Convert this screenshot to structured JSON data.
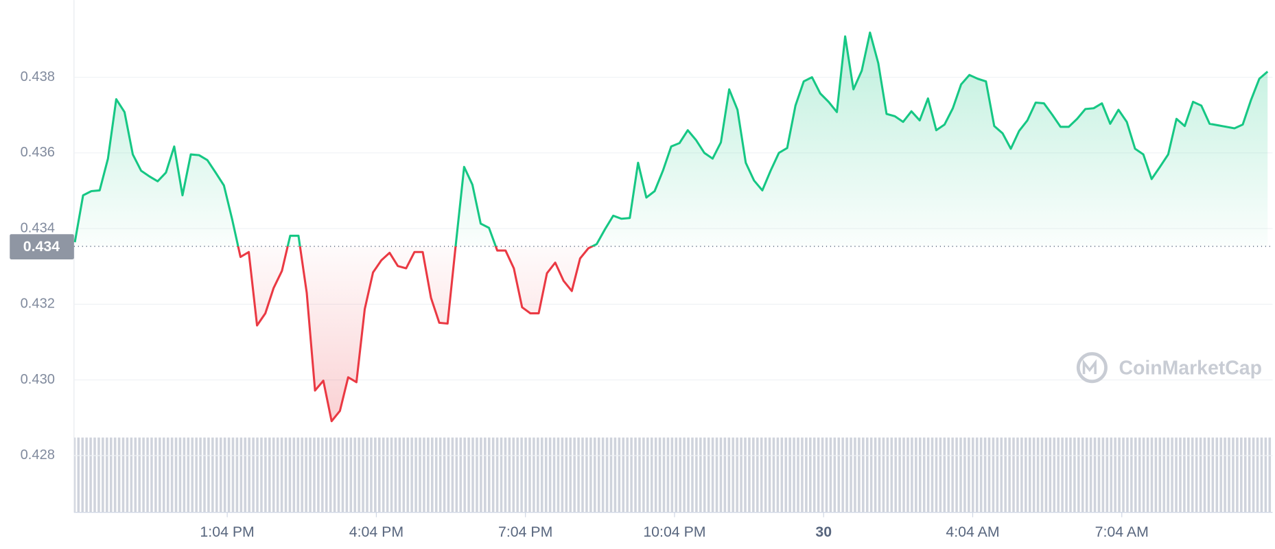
{
  "chart_data": {
    "type": "line",
    "x": [
      600,
      610,
      620,
      630,
      640,
      650,
      660,
      670,
      680,
      690,
      700,
      710,
      720,
      730,
      740,
      750,
      760,
      770,
      780,
      790,
      800,
      810,
      820,
      830,
      840,
      850,
      860,
      870,
      880,
      890,
      900,
      910,
      920,
      930,
      940,
      950,
      960,
      970,
      980,
      990,
      1000,
      1010,
      1020,
      1030,
      1040,
      1050,
      1060,
      1070,
      1080,
      1090,
      1100,
      1110,
      1120,
      1130,
      1140,
      1150,
      1160,
      1170,
      1180,
      1190,
      1200,
      1210,
      1220,
      1230,
      1240,
      1250,
      1260,
      1270,
      1280,
      1290,
      1300,
      1310,
      1320,
      1330,
      1340,
      1350,
      1360,
      1370,
      1380,
      1390,
      1400,
      1410,
      1420,
      1430,
      1440,
      1450,
      1460,
      1470,
      1480,
      1490,
      1500,
      1510,
      1520,
      1530,
      1540,
      1550,
      1560,
      1570,
      1580,
      1590,
      1600,
      1610,
      1620,
      1630,
      1640,
      1650,
      1660,
      1670,
      1680,
      1690,
      1700,
      1710,
      1720,
      1730,
      1740,
      1750,
      1760,
      1770,
      1780,
      1790,
      1800,
      1810,
      1820,
      1830,
      1840,
      1850,
      1860,
      1870,
      1880,
      1890,
      1900,
      1910,
      1920,
      1930,
      1940,
      1950,
      1960,
      1970,
      1980,
      1990,
      2000,
      2010,
      2020,
      2030,
      2040
    ],
    "values": [
      0.43364,
      0.43488,
      0.43499,
      0.43501,
      0.43585,
      0.43742,
      0.43708,
      0.43596,
      0.43553,
      0.43538,
      0.43525,
      0.43548,
      0.43617,
      0.43488,
      0.43596,
      0.43594,
      0.43581,
      0.43548,
      0.43514,
      0.43424,
      0.43325,
      0.43338,
      0.43144,
      0.43176,
      0.43243,
      0.43288,
      0.43381,
      0.43381,
      0.4323,
      0.42972,
      0.42998,
      0.42891,
      0.42918,
      0.43007,
      0.42994,
      0.43187,
      0.43284,
      0.43316,
      0.43336,
      0.43301,
      0.43295,
      0.43338,
      0.43338,
      0.43217,
      0.43151,
      0.43149,
      0.43359,
      0.43563,
      0.43516,
      0.43413,
      0.43402,
      0.43342,
      0.43342,
      0.43295,
      0.43192,
      0.43176,
      0.43176,
      0.43282,
      0.4331,
      0.43262,
      0.43235,
      0.43321,
      0.43348,
      0.43359,
      0.43398,
      0.43434,
      0.43426,
      0.43428,
      0.43574,
      0.43482,
      0.43499,
      0.43553,
      0.43617,
      0.43626,
      0.4366,
      0.43634,
      0.436,
      0.43585,
      0.43628,
      0.43768,
      0.43714,
      0.43574,
      0.43527,
      0.43501,
      0.43553,
      0.436,
      0.43613,
      0.43725,
      0.43789,
      0.438,
      0.43757,
      0.43735,
      0.43708,
      0.43908,
      0.43768,
      0.43817,
      0.43918,
      0.43837,
      0.43703,
      0.43697,
      0.43682,
      0.4371,
      0.43686,
      0.43744,
      0.4366,
      0.43675,
      0.43718,
      0.43781,
      0.43806,
      0.43796,
      0.43789,
      0.43671,
      0.43652,
      0.43611,
      0.43658,
      0.43686,
      0.43733,
      0.43731,
      0.43701,
      0.43669,
      0.43669,
      0.4369,
      0.43716,
      0.43718,
      0.43731,
      0.43677,
      0.43714,
      0.43682,
      0.43611,
      0.43596,
      0.43531,
      0.43563,
      0.43596,
      0.4369,
      0.43671,
      0.43735,
      0.43725,
      0.43677,
      0.43673,
      0.43669,
      0.43665,
      0.43675,
      0.4374,
      0.43796,
      0.43815
    ],
    "color": "#16c784",
    "down_color": "#ea3943",
    "reference_line": {
      "value": 0.43353,
      "label": "0.434"
    },
    "xlim": [
      599,
      2046
    ],
    "xticks": [
      {
        "value": 784,
        "label": "1:04 PM"
      },
      {
        "value": 964,
        "label": "4:04 PM"
      },
      {
        "value": 1144,
        "label": "7:04 PM"
      },
      {
        "value": 1324,
        "label": "10:04 PM"
      },
      {
        "value": 1504,
        "label": "30",
        "emphasis": true
      },
      {
        "value": 1684,
        "label": "4:04 AM"
      },
      {
        "value": 1864,
        "label": "7:04 AM"
      }
    ],
    "ylim": [
      0.4265,
      0.44004
    ],
    "yticks": [
      {
        "value": 0.428,
        "label": "0.428"
      },
      {
        "value": 0.43,
        "label": "0.430"
      },
      {
        "value": 0.432,
        "label": "0.432"
      },
      {
        "value": 0.434,
        "label": "0.434"
      },
      {
        "value": 0.436,
        "label": "0.436"
      },
      {
        "value": 0.438,
        "label": "0.438"
      }
    ],
    "grid": true,
    "watermark": "CoinMarketCap"
  }
}
